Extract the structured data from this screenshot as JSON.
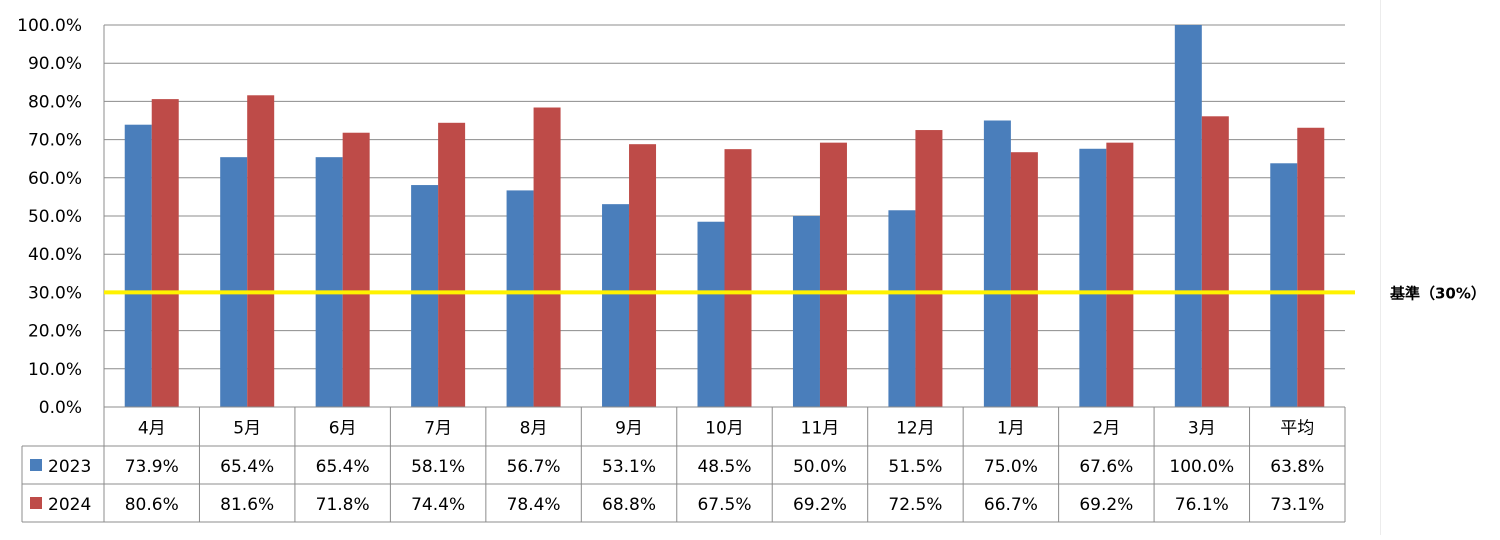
{
  "chart_data": {
    "type": "bar",
    "categories": [
      "4月",
      "5月",
      "6月",
      "7月",
      "8月",
      "9月",
      "10月",
      "11月",
      "12月",
      "1月",
      "2月",
      "3月",
      "平均"
    ],
    "series": [
      {
        "name": "2023",
        "color": "#4A7EBB",
        "values": [
          73.9,
          65.4,
          65.4,
          58.1,
          56.7,
          53.1,
          48.5,
          50.0,
          51.5,
          75.0,
          67.6,
          100.0,
          63.8
        ],
        "labels": [
          "73.9%",
          "65.4%",
          "65.4%",
          "58.1%",
          "56.7%",
          "53.1%",
          "48.5%",
          "50.0%",
          "51.5%",
          "75.0%",
          "67.6%",
          "100.0%",
          "63.8%"
        ]
      },
      {
        "name": "2024",
        "color": "#BE4B48",
        "values": [
          80.6,
          81.6,
          71.8,
          74.4,
          78.4,
          68.8,
          67.5,
          69.2,
          72.5,
          66.7,
          69.2,
          76.1,
          73.1
        ],
        "labels": [
          "80.6%",
          "81.6%",
          "71.8%",
          "74.4%",
          "78.4%",
          "68.8%",
          "67.5%",
          "69.2%",
          "72.5%",
          "66.7%",
          "69.2%",
          "76.1%",
          "73.1%"
        ]
      }
    ],
    "yticks": [
      "0.0%",
      "10.0%",
      "20.0%",
      "30.0%",
      "40.0%",
      "50.0%",
      "60.0%",
      "70.0%",
      "80.0%",
      "90.0%",
      "100.0%"
    ],
    "ylim": [
      0,
      100
    ],
    "grid": true,
    "legend": "data-table",
    "reference_line": {
      "value": 30,
      "label": "基準（30%）",
      "color": "#FFF200"
    }
  }
}
